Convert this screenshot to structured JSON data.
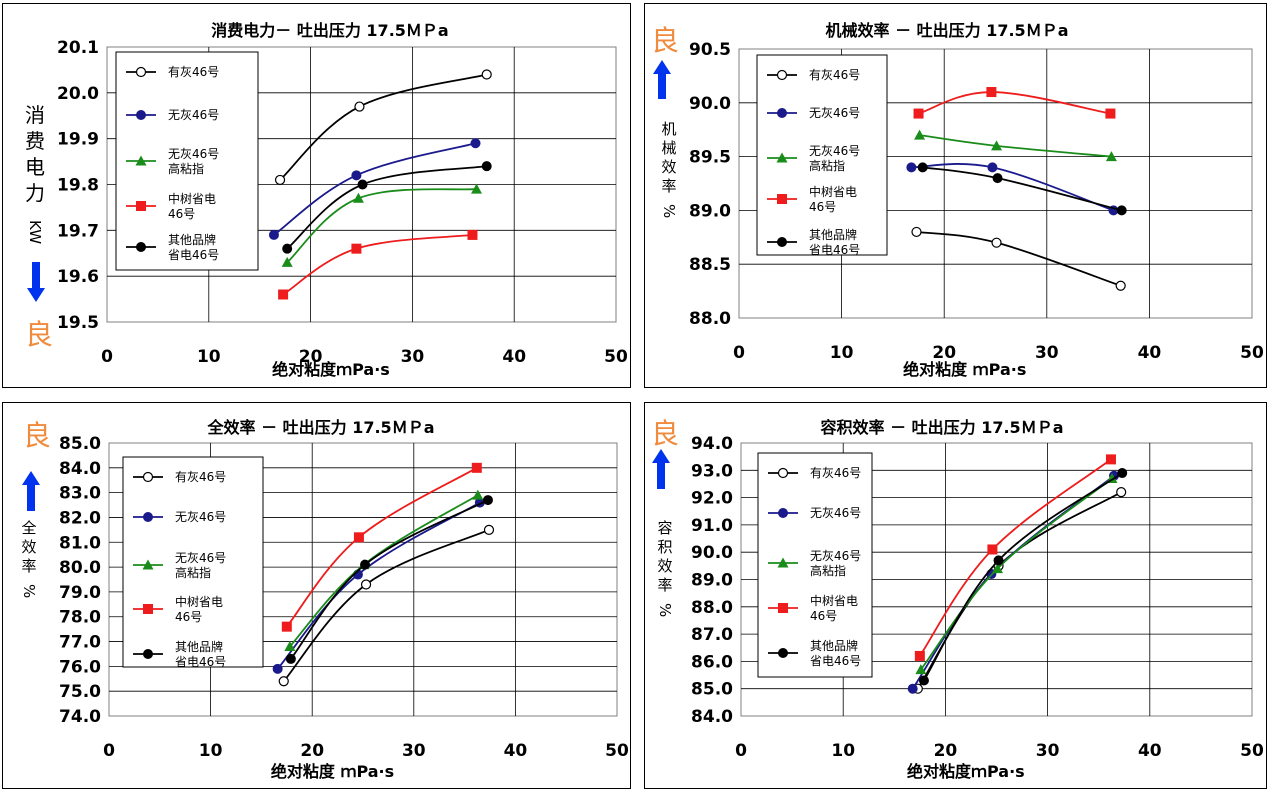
{
  "series_defs": [
    {
      "name": "有灰46号",
      "lines": [
        "有灰46号"
      ],
      "color": "#000000",
      "marker": "circle-open"
    },
    {
      "name": "无灰46号",
      "lines": [
        "无灰46号"
      ],
      "color": "#1a1a8c",
      "marker": "diamond"
    },
    {
      "name": "无灰46号高粘指",
      "lines": [
        "无灰46号",
        "高粘指"
      ],
      "color": "#1a8c1a",
      "marker": "triangle"
    },
    {
      "name": "中树省电46号",
      "lines": [
        "中树省电",
        "46号"
      ],
      "color": "#ee1c1c",
      "marker": "square"
    },
    {
      "name": "其他品牌省电46号",
      "lines": [
        "其他品牌",
        "省电46号"
      ],
      "color": "#000000",
      "marker": "circle"
    }
  ],
  "good_label": "良",
  "chart_data": [
    {
      "type": "line",
      "title": "消费电力－ 吐出压力 17.5ＭＰa",
      "xlabel": "绝对粘度ｍPa·s",
      "ylabel": "消费电力",
      "ylabel_unit": "KW",
      "good_direction": "down",
      "xlim": [
        0,
        50
      ],
      "xticks": [
        0,
        10,
        20,
        30,
        40,
        50
      ],
      "ylim": [
        19.5,
        20.1
      ],
      "ytick_step": 0.1,
      "ytick_decimals": 1,
      "grid": "horizontal",
      "series": [
        {
          "name": "有灰46号",
          "points": [
            [
              17,
              19.81
            ],
            [
              24.8,
              19.97
            ],
            [
              37.3,
              20.04
            ]
          ]
        },
        {
          "name": "无灰46号",
          "points": [
            [
              16.4,
              19.69
            ],
            [
              24.5,
              19.82
            ],
            [
              36.2,
              19.89
            ]
          ]
        },
        {
          "name": "无灰46号高粘指",
          "points": [
            [
              17.7,
              19.63
            ],
            [
              24.7,
              19.77
            ],
            [
              36.3,
              19.79
            ]
          ]
        },
        {
          "name": "中树省电46号",
          "points": [
            [
              17.3,
              19.56
            ],
            [
              24.5,
              19.66
            ],
            [
              35.9,
              19.69
            ]
          ]
        },
        {
          "name": "其他品牌省电46号",
          "points": [
            [
              17.7,
              19.66
            ],
            [
              25.1,
              19.8
            ],
            [
              37.3,
              19.84
            ]
          ]
        }
      ]
    },
    {
      "type": "line",
      "title": "机械效率 － 吐出压力 17.5ＭＰa",
      "xlabel": "绝对粘度 ｍPa·s",
      "ylabel": "机械效率",
      "ylabel_unit": "%",
      "good_direction": "up",
      "xlim": [
        0,
        50
      ],
      "xticks": [
        0,
        10,
        20,
        30,
        40,
        50
      ],
      "ylim": [
        88.0,
        90.5
      ],
      "ytick_step": 0.5,
      "ytick_decimals": 1,
      "grid": "horizontal",
      "series": [
        {
          "name": "有灰46号",
          "points": [
            [
              17.3,
              88.8
            ],
            [
              25.1,
              88.7
            ],
            [
              37.2,
              88.3
            ]
          ]
        },
        {
          "name": "无灰46号",
          "points": [
            [
              16.8,
              89.4
            ],
            [
              24.7,
              89.4
            ],
            [
              36.5,
              89.0
            ]
          ]
        },
        {
          "name": "无灰46号高粘指",
          "points": [
            [
              17.6,
              89.7
            ],
            [
              25.1,
              89.6
            ],
            [
              36.3,
              89.5
            ]
          ]
        },
        {
          "name": "中树省电46号",
          "points": [
            [
              17.5,
              89.9
            ],
            [
              24.6,
              90.1
            ],
            [
              36.2,
              89.9
            ]
          ]
        },
        {
          "name": "其他品牌省电46号",
          "points": [
            [
              17.9,
              89.4
            ],
            [
              25.2,
              89.3
            ],
            [
              37.3,
              89.0
            ]
          ]
        }
      ]
    },
    {
      "type": "line",
      "title": "全效率 － 吐出压力 17.5ＭＰa",
      "xlabel": "绝对粘度 ｍPa·s",
      "ylabel": "全效率",
      "ylabel_unit": "%",
      "good_direction": "up",
      "xlim": [
        0,
        50
      ],
      "xticks": [
        0,
        10,
        20,
        30,
        40,
        50
      ],
      "ylim": [
        74.0,
        85.0
      ],
      "ytick_step": 1.0,
      "ytick_decimals": 1,
      "grid": "horizontal",
      "series": [
        {
          "name": "有灰46号",
          "points": [
            [
              17.2,
              75.4
            ],
            [
              25.3,
              79.3
            ],
            [
              37.4,
              81.5
            ]
          ]
        },
        {
          "name": "无灰46号",
          "points": [
            [
              16.6,
              75.9
            ],
            [
              24.5,
              79.7
            ],
            [
              36.5,
              82.6
            ]
          ]
        },
        {
          "name": "无灰46号高粘指",
          "points": [
            [
              17.8,
              76.8
            ],
            [
              25.1,
              80.1
            ],
            [
              36.3,
              82.9
            ]
          ]
        },
        {
          "name": "中树省电46号",
          "points": [
            [
              17.5,
              77.6
            ],
            [
              24.6,
              81.2
            ],
            [
              36.2,
              84.0
            ]
          ]
        },
        {
          "name": "其他品牌省电46号",
          "points": [
            [
              17.9,
              76.3
            ],
            [
              25.2,
              80.1
            ],
            [
              37.3,
              82.7
            ]
          ]
        }
      ]
    },
    {
      "type": "line",
      "title": "容积效率 － 吐出压力 17.5ＭＰa",
      "xlabel": "绝对粘度ｍPa·s",
      "ylabel": "容积效率",
      "ylabel_unit": "%",
      "good_direction": "up",
      "xlim": [
        0,
        50
      ],
      "xticks": [
        0,
        10,
        20,
        30,
        40,
        50
      ],
      "ylim": [
        84.0,
        94.0
      ],
      "ytick_step": 1.0,
      "ytick_decimals": 1,
      "grid": "horizontal",
      "series": [
        {
          "name": "有灰46号",
          "points": [
            [
              17.3,
              85.0
            ],
            [
              25.2,
              89.5
            ],
            [
              37.2,
              92.2
            ]
          ]
        },
        {
          "name": "无灰46号",
          "points": [
            [
              16.8,
              85.0
            ],
            [
              24.5,
              89.2
            ],
            [
              36.5,
              92.8
            ]
          ]
        },
        {
          "name": "无灰46号高粘指",
          "points": [
            [
              17.6,
              85.7
            ],
            [
              25.1,
              89.4
            ],
            [
              36.3,
              92.7
            ]
          ]
        },
        {
          "name": "中树省电46号",
          "points": [
            [
              17.5,
              86.2
            ],
            [
              24.6,
              90.1
            ],
            [
              36.2,
              93.4
            ]
          ]
        },
        {
          "name": "其他品牌省电46号",
          "points": [
            [
              17.9,
              85.3
            ],
            [
              25.2,
              89.7
            ],
            [
              37.3,
              92.9
            ]
          ]
        }
      ]
    }
  ]
}
